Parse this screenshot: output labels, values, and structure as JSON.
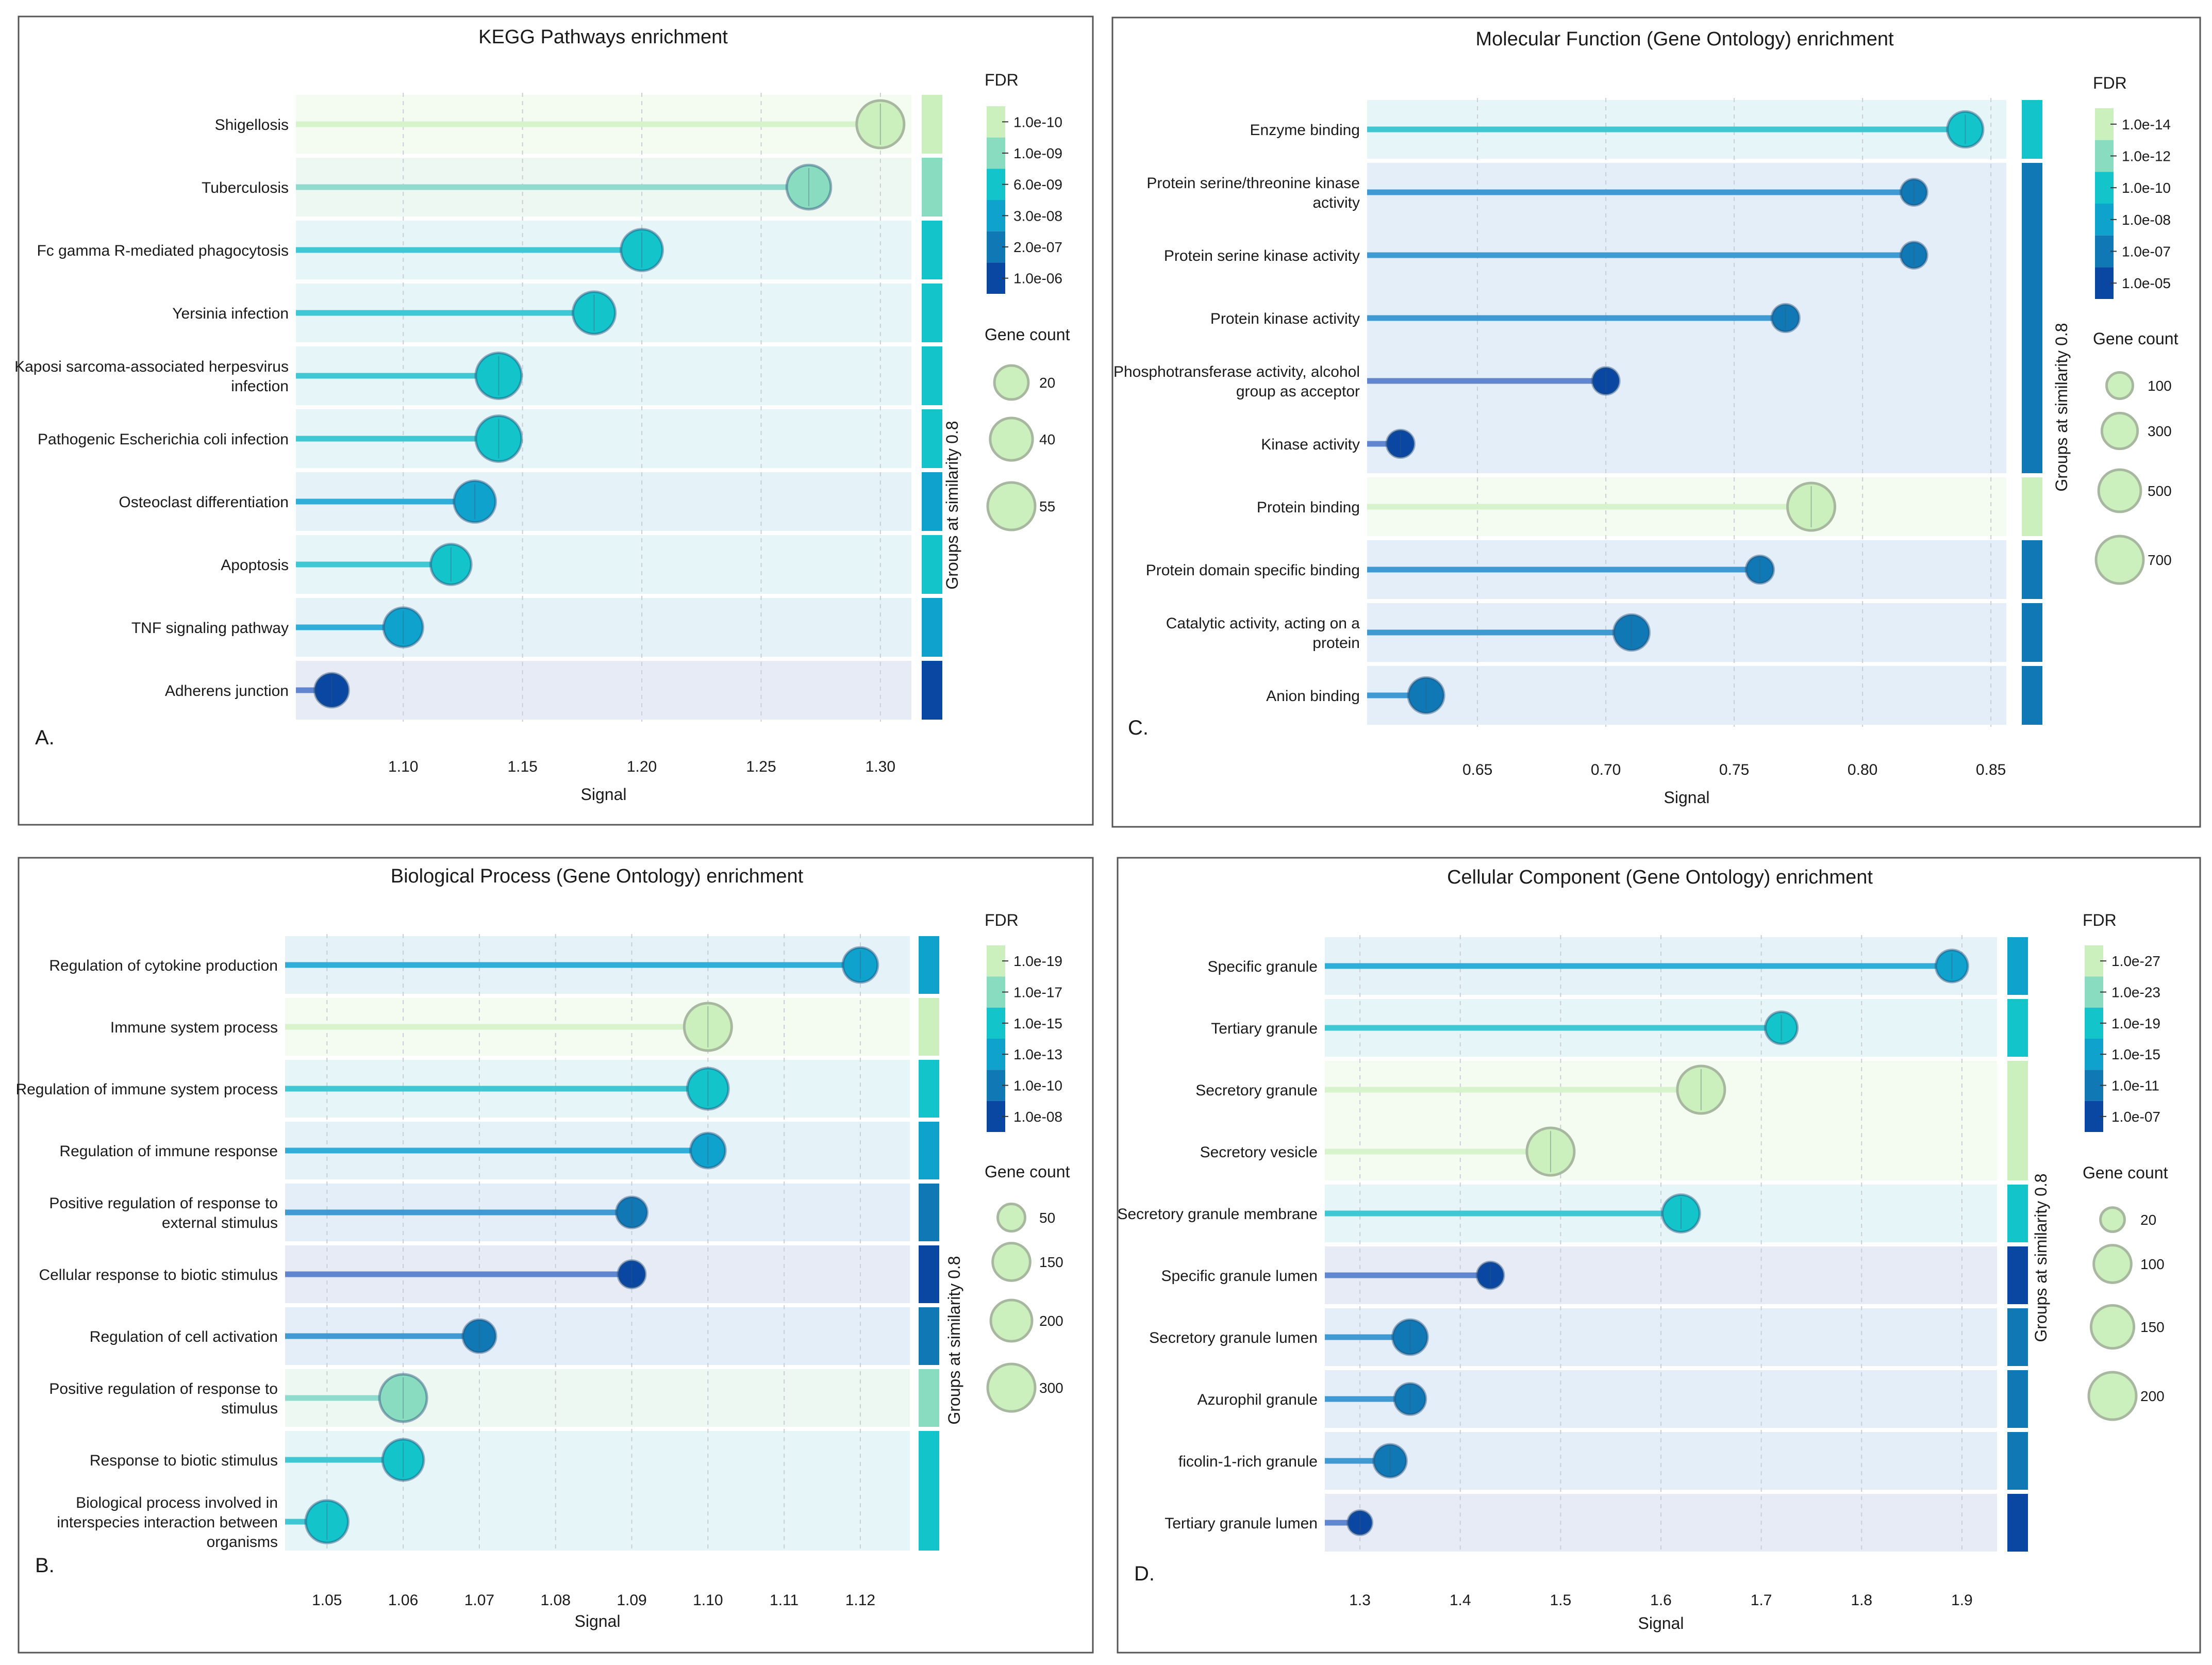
{
  "chart_data": [
    {
      "id": "A",
      "type": "lollipop",
      "title": "KEGG Pathways enrichment",
      "panel_label": "A.",
      "xlabel": "Signal",
      "xlim": [
        1.055,
        1.313
      ],
      "xticks": [
        "1.10",
        "1.15",
        "1.20",
        "1.25",
        "1.30"
      ],
      "fdr_title": "FDR",
      "fdr_labels": [
        "1.0e-10",
        "1.0e-09",
        "6.0e-09",
        "3.0e-08",
        "2.0e-07",
        "1.0e-06"
      ],
      "count_title": "Gene count",
      "count_labels": [
        "20",
        "40",
        "55"
      ],
      "group_label": "Groups at similarity 0.8",
      "categories": [
        "Shigellosis",
        "Tuberculosis",
        "Fc gamma R-mediated phagocytosis",
        "Yersinia infection",
        "Kaposi sarcoma-associated herpesvirus infection",
        "Pathogenic Escherichia coli infection",
        "Osteoclast differentiation",
        "Apoptosis",
        "TNF signaling pathway",
        "Adherens junction"
      ],
      "wrapped_labels": [
        [
          "Shigellosis"
        ],
        [
          "Tuberculosis"
        ],
        [
          "Fc gamma R-mediated phagocytosis"
        ],
        [
          "Yersinia infection"
        ],
        [
          "Kaposi sarcoma-associated herpesvirus",
          "infection"
        ],
        [
          "Pathogenic Escherichia coli infection"
        ],
        [
          "Osteoclast differentiation"
        ],
        [
          "Apoptosis"
        ],
        [
          "TNF signaling pathway"
        ],
        [
          "Adherens junction"
        ]
      ],
      "signal": [
        1.3,
        1.27,
        1.2,
        1.18,
        1.14,
        1.14,
        1.13,
        1.12,
        1.1,
        1.07
      ],
      "gene_count": [
        55,
        45,
        38,
        40,
        50,
        50,
        38,
        35,
        32,
        20
      ],
      "fdr_level": [
        0,
        1,
        2,
        2,
        2,
        2,
        3,
        2,
        3,
        5
      ],
      "groups": [
        [
          0,
          0
        ],
        [
          1,
          1
        ],
        [
          2,
          2
        ],
        [
          3,
          3
        ],
        [
          4,
          4
        ],
        [
          5,
          5
        ],
        [
          6,
          6
        ],
        [
          7,
          7
        ],
        [
          8,
          8
        ],
        [
          9,
          9
        ]
      ]
    },
    {
      "id": "C",
      "type": "lollipop",
      "title": "Molecular Function (Gene Ontology) enrichment",
      "panel_label": "C.",
      "xlabel": "Signal",
      "xlim": [
        0.607,
        0.856
      ],
      "xticks": [
        "0.65",
        "0.70",
        "0.75",
        "0.80",
        "0.85"
      ],
      "fdr_title": "FDR",
      "fdr_labels": [
        "1.0e-14",
        "1.0e-12",
        "1.0e-10",
        "1.0e-08",
        "1.0e-07",
        "1.0e-05"
      ],
      "count_title": "Gene count",
      "count_labels": [
        "100",
        "300",
        "500",
        "700"
      ],
      "group_label": "Groups at similarity 0.8",
      "categories": [
        "Enzyme binding",
        "Protein serine/threonine kinase activity",
        "Protein serine kinase activity",
        "Protein kinase activity",
        "Phosphotransferase activity, alcohol group as acceptor",
        "Kinase activity",
        "Protein binding",
        "Protein domain specific binding",
        "Catalytic activity, acting on a protein",
        "Anion binding"
      ],
      "wrapped_labels": [
        [
          "Enzyme binding"
        ],
        [
          "Protein serine/threonine kinase",
          "activity"
        ],
        [
          "Protein serine kinase activity"
        ],
        [
          "Protein kinase activity"
        ],
        [
          "Phosphotransferase activity, alcohol",
          "group as acceptor"
        ],
        [
          "Kinase activity"
        ],
        [
          "Protein binding"
        ],
        [
          "Protein domain specific binding"
        ],
        [
          "Catalytic activity, acting on a",
          "protein"
        ],
        [
          "Anion binding"
        ]
      ],
      "signal": [
        0.84,
        0.82,
        0.82,
        0.77,
        0.7,
        0.62,
        0.78,
        0.76,
        0.71,
        0.63
      ],
      "gene_count": [
        300,
        100,
        100,
        120,
        110,
        120,
        700,
        120,
        300,
        300
      ],
      "fdr_level": [
        2,
        4,
        4,
        4,
        5,
        5,
        0,
        4,
        4,
        4
      ],
      "groups": [
        [
          0,
          0
        ],
        [
          1,
          5
        ],
        [
          6,
          6
        ],
        [
          7,
          7
        ],
        [
          8,
          8
        ],
        [
          9,
          9
        ]
      ]
    },
    {
      "id": "B",
      "type": "lollipop",
      "title": "Biological Process (Gene Ontology) enrichment",
      "panel_label": "B.",
      "xlabel": "Signal",
      "xlim": [
        1.0445,
        1.1265
      ],
      "xticks": [
        "1.05",
        "1.06",
        "1.07",
        "1.08",
        "1.09",
        "1.10",
        "1.11",
        "1.12"
      ],
      "fdr_title": "FDR",
      "fdr_labels": [
        "1.0e-19",
        "1.0e-17",
        "1.0e-15",
        "1.0e-13",
        "1.0e-10",
        "1.0e-08"
      ],
      "count_title": "Gene count",
      "count_labels": [
        "50",
        "150",
        "200",
        "300"
      ],
      "group_label": "Groups at similarity 0.8",
      "categories": [
        "Regulation of cytokine production",
        "Immune system process",
        "Regulation of immune system process",
        "Regulation of immune response",
        "Positive regulation of response to external stimulus",
        "Cellular response to biotic stimulus",
        "Regulation of cell activation",
        "Positive regulation of response to stimulus",
        "Response to biotic stimulus",
        "Biological process involved in interspecies interaction between organisms"
      ],
      "wrapped_labels": [
        [
          "Regulation of cytokine production"
        ],
        [
          "Immune system process"
        ],
        [
          "Regulation of immune system process"
        ],
        [
          "Regulation of immune response"
        ],
        [
          "Positive regulation of response to",
          "external stimulus"
        ],
        [
          "Cellular response to biotic stimulus"
        ],
        [
          "Regulation of cell activation"
        ],
        [
          "Positive regulation of response to",
          "stimulus"
        ],
        [
          "Response to biotic stimulus"
        ],
        [
          "Biological process involved in",
          "interspecies interaction between",
          "organisms"
        ]
      ],
      "signal": [
        1.12,
        1.1,
        1.1,
        1.1,
        1.09,
        1.09,
        1.07,
        1.06,
        1.06,
        1.05
      ],
      "gene_count": [
        120,
        300,
        200,
        120,
        80,
        50,
        100,
        300,
        200,
        220
      ],
      "fdr_level": [
        3,
        0,
        2,
        3,
        4,
        5,
        4,
        1,
        2,
        2
      ],
      "groups": [
        [
          0,
          0
        ],
        [
          1,
          1
        ],
        [
          2,
          2
        ],
        [
          3,
          3
        ],
        [
          4,
          4
        ],
        [
          5,
          5
        ],
        [
          6,
          6
        ],
        [
          7,
          7
        ],
        [
          8,
          9
        ]
      ]
    },
    {
      "id": "D",
      "type": "lollipop",
      "title": "Cellular Component (Gene Ontology) enrichment",
      "panel_label": "D.",
      "xlabel": "Signal",
      "xlim": [
        1.265,
        1.935
      ],
      "xticks": [
        "1.3",
        "1.4",
        "1.5",
        "1.6",
        "1.7",
        "1.8",
        "1.9"
      ],
      "fdr_title": "FDR",
      "fdr_labels": [
        "1.0e-27",
        "1.0e-23",
        "1.0e-19",
        "1.0e-15",
        "1.0e-11",
        "1.0e-07"
      ],
      "count_title": "Gene count",
      "count_labels": [
        "20",
        "100",
        "150",
        "200"
      ],
      "group_label": "Groups at similarity 0.8",
      "categories": [
        "Specific granule",
        "Tertiary granule",
        "Secretory granule",
        "Secretory vesicle",
        "Secretory granule membrane",
        "Specific granule lumen",
        "Secretory granule lumen",
        "Azurophil granule",
        "ficolin-1-rich granule",
        "Tertiary granule lumen"
      ],
      "wrapped_labels": [
        [
          "Specific granule"
        ],
        [
          "Tertiary granule"
        ],
        [
          "Secretory granule"
        ],
        [
          "Secretory vesicle"
        ],
        [
          "Secretory granule membrane"
        ],
        [
          "Specific granule lumen"
        ],
        [
          "Secretory granule lumen"
        ],
        [
          "Azurophil granule"
        ],
        [
          "ficolin-1-rich granule"
        ],
        [
          "Tertiary granule lumen"
        ]
      ],
      "signal": [
        1.89,
        1.72,
        1.64,
        1.49,
        1.62,
        1.43,
        1.35,
        1.35,
        1.33,
        1.3
      ],
      "gene_count": [
        60,
        60,
        200,
        200,
        100,
        30,
        80,
        55,
        65,
        20
      ],
      "fdr_level": [
        3,
        2,
        0,
        0,
        2,
        5,
        4,
        4,
        4,
        5
      ],
      "groups": [
        [
          0,
          0
        ],
        [
          1,
          1
        ],
        [
          2,
          3
        ],
        [
          4,
          4
        ],
        [
          5,
          5
        ],
        [
          6,
          6
        ],
        [
          7,
          7
        ],
        [
          8,
          8
        ],
        [
          9,
          9
        ]
      ]
    }
  ],
  "colors": {
    "fdr_palette": [
      "#ccf0bd",
      "#8adcc0",
      "#14c4cb",
      "#0ea2cc",
      "#1078b5",
      "#0a47a3"
    ],
    "bubble_fill": [
      "#ccf0bd",
      "#8adcc0",
      "#14c4cb",
      "#0ea2cc",
      "#1078b5",
      "#0a47a3"
    ],
    "stem": [
      "#d6f3cc",
      "#8fdccf",
      "#3fc8d4",
      "#2eaed8",
      "#3f99d2",
      "#5f86cf"
    ],
    "band": [
      "#f4fbf0",
      "#eef8f3",
      "#e6f5f7",
      "#e5f2f8",
      "#e4eef8",
      "#e6ebf6"
    ]
  }
}
